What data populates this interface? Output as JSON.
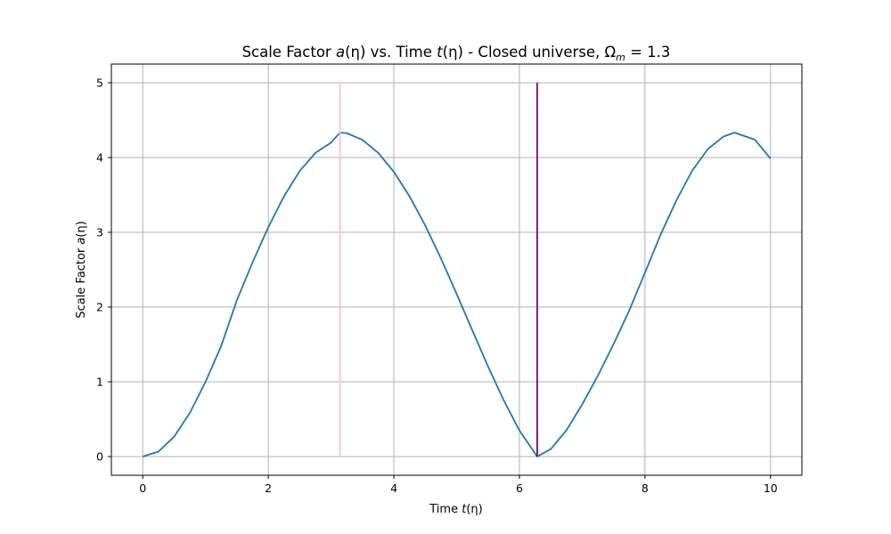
{
  "chart_data": {
    "type": "line",
    "title": "Scale Factor a(η) vs. Time t(η) - Closed universe, Ωm = 1.3",
    "title_parts": {
      "prefix": "Scale Factor ",
      "a_sym": "a",
      "a_arg": "(η)",
      "middle": " vs. Time ",
      "t_sym": "t",
      "t_arg": "(η)",
      "suffix": " - Closed universe, ",
      "omega": "Ω",
      "omega_sub": "m",
      "equals": " = 1.3"
    },
    "xlabel": "Time t(η)",
    "xlabel_parts": {
      "text": "Time ",
      "sym": "t",
      "arg": "(η)"
    },
    "ylabel": "Scale Factor a(η)",
    "ylabel_parts": {
      "text": "Scale Factor ",
      "sym": "a",
      "arg": "(η)"
    },
    "xlim": [
      -0.5,
      10.5
    ],
    "ylim": [
      -0.25,
      5.25
    ],
    "xticks": [
      0,
      2,
      4,
      6,
      8,
      10
    ],
    "yticks": [
      0,
      1,
      2,
      3,
      4,
      5
    ],
    "grid": true,
    "series": [
      {
        "color": "#1f77b4",
        "x": [
          0.0,
          0.25,
          0.5,
          0.75,
          1.0,
          1.25,
          1.5,
          1.75,
          2.0,
          2.25,
          2.5,
          2.75,
          3.0,
          3.1416,
          3.25,
          3.5,
          3.75,
          4.0,
          4.25,
          4.5,
          4.75,
          5.0,
          5.25,
          5.5,
          5.75,
          6.0,
          6.2832,
          6.5,
          6.75,
          7.0,
          7.25,
          7.5,
          7.75,
          8.0,
          8.25,
          8.5,
          8.75,
          9.0,
          9.25,
          9.4248,
          9.75,
          10.0
        ],
        "y": [
          0.0,
          0.067,
          0.266,
          0.585,
          1.0,
          1.481,
          2.093,
          2.599,
          3.068,
          3.482,
          3.819,
          4.062,
          4.2,
          4.333,
          4.326,
          4.236,
          4.063,
          3.808,
          3.481,
          3.09,
          2.65,
          2.176,
          1.689,
          1.206,
          0.753,
          0.349,
          0.0,
          0.101,
          0.353,
          0.697,
          1.082,
          1.504,
          1.955,
          2.459,
          2.97,
          3.426,
          3.82,
          4.112,
          4.28,
          4.333,
          4.24,
          3.986
        ]
      },
      {
        "color": "#ffc0cb",
        "x": [
          3.1416,
          3.1416
        ],
        "y": [
          0,
          5
        ]
      },
      {
        "color": "#800080",
        "x": [
          6.2832,
          6.2832
        ],
        "y": [
          0,
          5
        ]
      }
    ]
  }
}
